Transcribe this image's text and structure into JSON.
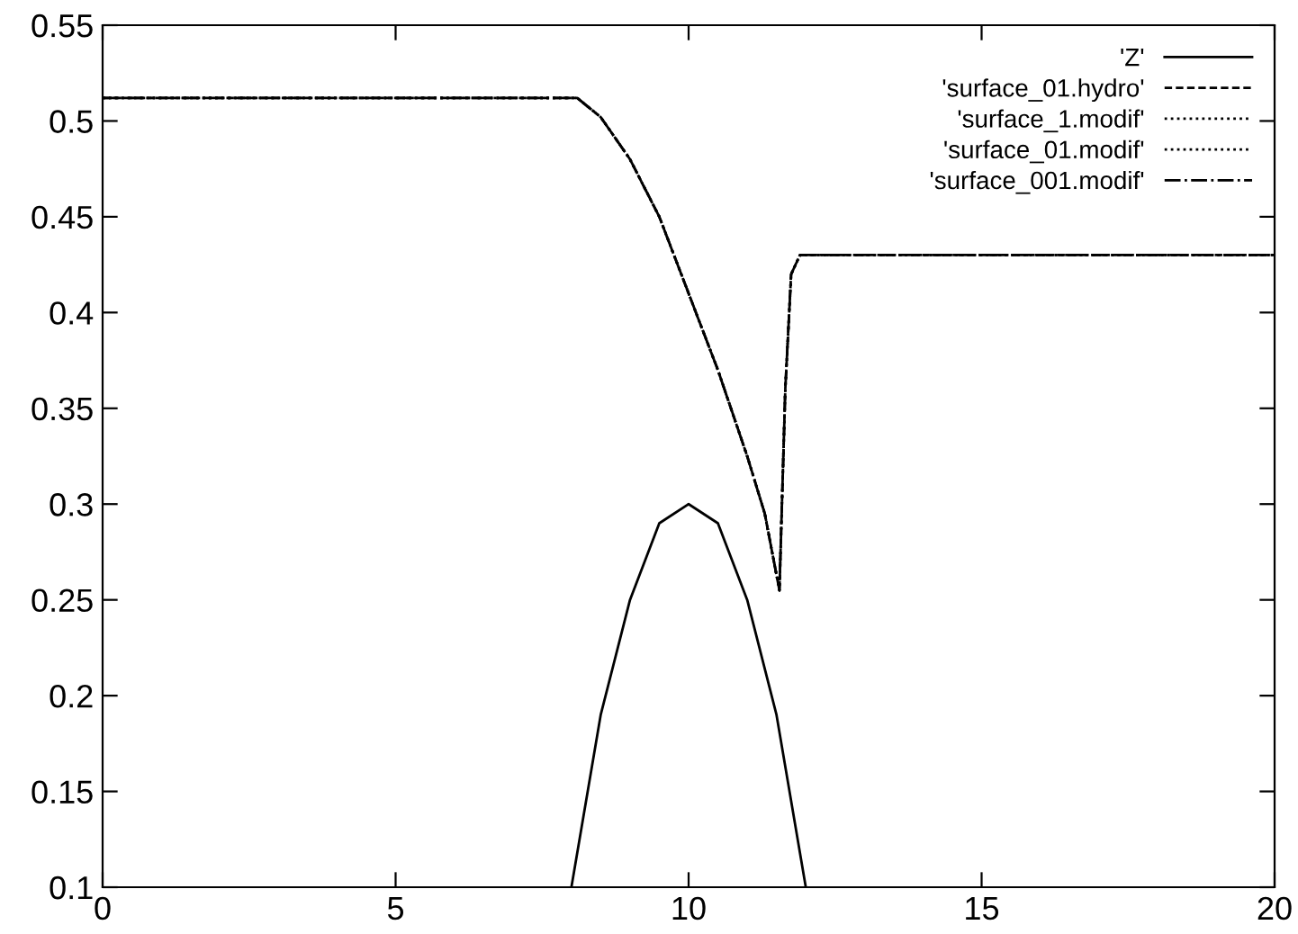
{
  "chart_data": {
    "type": "line",
    "xlim": [
      0,
      20
    ],
    "ylim": [
      0.1,
      0.55
    ],
    "xticks": [
      0,
      5,
      10,
      15,
      20
    ],
    "yticks": [
      0.1,
      0.15,
      0.2,
      0.25,
      0.3,
      0.35,
      0.4,
      0.45,
      0.5,
      0.55
    ],
    "grid": false,
    "legend": "top right",
    "marker": "none",
    "series": [
      {
        "name": "'Z'",
        "color": "#000000",
        "line_style": "solid",
        "x": [
          8,
          8.5,
          9,
          9.5,
          10,
          10.5,
          11,
          11.5,
          12
        ],
        "values": [
          0.1,
          0.19,
          0.25,
          0.29,
          0.3,
          0.29,
          0.25,
          0.19,
          0.1
        ]
      },
      {
        "name": "'surface_01.hydro'",
        "color": "#000000",
        "line_style": "dashed",
        "x": [
          0,
          8.1,
          8.5,
          9,
          9.5,
          10,
          10.5,
          11,
          11.3,
          11.55,
          11.65,
          11.75,
          11.9,
          20
        ],
        "values": [
          0.512,
          0.512,
          0.502,
          0.48,
          0.45,
          0.41,
          0.37,
          0.325,
          0.295,
          0.255,
          0.36,
          0.42,
          0.43,
          0.43
        ]
      },
      {
        "name": "'surface_1.modif'",
        "color": "#000000",
        "line_style": "dotted",
        "x": [
          0,
          8.1,
          8.5,
          9,
          9.5,
          10,
          10.5,
          11,
          11.3,
          11.55,
          11.65,
          11.75,
          11.9,
          20
        ],
        "values": [
          0.512,
          0.512,
          0.502,
          0.48,
          0.45,
          0.41,
          0.37,
          0.325,
          0.295,
          0.255,
          0.36,
          0.42,
          0.43,
          0.43
        ]
      },
      {
        "name": "'surface_01.modif'",
        "color": "#000000",
        "line_style": "dotted",
        "x": [
          0,
          8.1,
          8.5,
          9,
          9.5,
          10,
          10.5,
          11,
          11.3,
          11.55,
          11.65,
          11.75,
          11.9,
          20
        ],
        "values": [
          0.512,
          0.512,
          0.502,
          0.48,
          0.45,
          0.41,
          0.37,
          0.325,
          0.295,
          0.255,
          0.36,
          0.42,
          0.43,
          0.43
        ]
      },
      {
        "name": "'surface_001.modif'",
        "color": "#000000",
        "line_style": "dashdot",
        "x": [
          0,
          8.1,
          8.5,
          9,
          9.5,
          10,
          10.5,
          11,
          11.3,
          11.55,
          11.65,
          11.75,
          11.9,
          20
        ],
        "values": [
          0.512,
          0.512,
          0.502,
          0.48,
          0.45,
          0.41,
          0.37,
          0.325,
          0.295,
          0.255,
          0.36,
          0.42,
          0.43,
          0.43
        ]
      }
    ]
  }
}
